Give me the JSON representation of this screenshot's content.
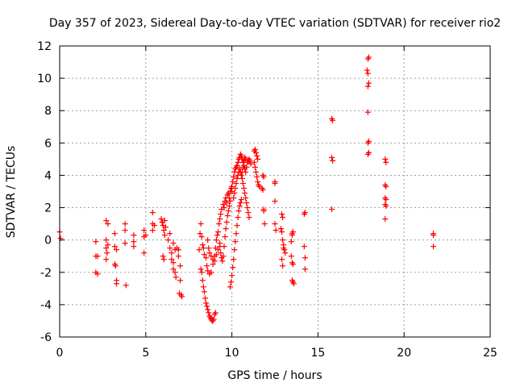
{
  "chart_data": {
    "type": "scatter",
    "title": "Day 357 of 2023, Sidereal Day-to-day VTEC variation (SDTVAR) for receiver rio2",
    "xlabel": "GPS time / hours",
    "ylabel": "SDTVAR / TECUs",
    "xlim": [
      0,
      25
    ],
    "ylim": [
      -6,
      12
    ],
    "xticks": [
      0,
      5,
      10,
      15,
      20,
      25
    ],
    "yticks": [
      -6,
      -4,
      -2,
      0,
      2,
      4,
      6,
      8,
      10,
      12
    ],
    "grid": true,
    "marker": "+",
    "marker_color": "#ff0000",
    "series": [
      {
        "name": "SDTVAR",
        "points": [
          [
            0.0,
            0.5
          ],
          [
            0.05,
            0.1
          ],
          [
            2.1,
            -0.1
          ],
          [
            2.1,
            -1.0
          ],
          [
            2.1,
            -2.0
          ],
          [
            2.2,
            -2.1
          ],
          [
            2.2,
            -1.0
          ],
          [
            2.7,
            1.2
          ],
          [
            2.7,
            0.0
          ],
          [
            2.7,
            -0.5
          ],
          [
            2.7,
            -1.2
          ],
          [
            2.8,
            1.0
          ],
          [
            2.8,
            -0.3
          ],
          [
            2.75,
            -0.8
          ],
          [
            3.2,
            0.4
          ],
          [
            3.2,
            -0.4
          ],
          [
            3.2,
            -1.5
          ],
          [
            3.3,
            -0.6
          ],
          [
            3.3,
            -2.5
          ],
          [
            3.3,
            -2.7
          ],
          [
            3.25,
            -1.6
          ],
          [
            3.8,
            1.0
          ],
          [
            3.8,
            0.6
          ],
          [
            3.8,
            -0.2
          ],
          [
            3.85,
            -2.8
          ],
          [
            4.3,
            0.3
          ],
          [
            4.3,
            -0.1
          ],
          [
            4.3,
            -0.4
          ],
          [
            4.9,
            0.6
          ],
          [
            4.9,
            0.2
          ],
          [
            4.9,
            -0.8
          ],
          [
            5.0,
            0.3
          ],
          [
            5.4,
            1.7
          ],
          [
            5.4,
            1.0
          ],
          [
            5.4,
            0.6
          ],
          [
            5.5,
            0.9
          ],
          [
            5.9,
            1.3
          ],
          [
            5.95,
            1.1
          ],
          [
            6.0,
            0.9
          ],
          [
            6.05,
            0.6
          ],
          [
            6.1,
            0.3
          ],
          [
            6.0,
            -1.0
          ],
          [
            6.05,
            -1.2
          ],
          [
            6.1,
            1.2
          ],
          [
            6.15,
            0.8
          ],
          [
            6.3,
            0.0
          ],
          [
            6.4,
            -0.5
          ],
          [
            6.5,
            -0.8
          ],
          [
            6.6,
            -1.4
          ],
          [
            6.7,
            -2.0
          ],
          [
            6.5,
            -1.2
          ],
          [
            6.6,
            -1.8
          ],
          [
            6.75,
            -2.3
          ],
          [
            6.4,
            0.4
          ],
          [
            6.6,
            -0.2
          ],
          [
            6.7,
            -0.6
          ],
          [
            6.8,
            -0.5
          ],
          [
            6.9,
            -1.0
          ],
          [
            7.0,
            -2.5
          ],
          [
            6.95,
            -3.3
          ],
          [
            7.05,
            -3.4
          ],
          [
            7.1,
            -3.5
          ],
          [
            6.9,
            -0.6
          ],
          [
            7.0,
            -1.6
          ],
          [
            8.1,
            -0.6
          ],
          [
            8.2,
            -1.8
          ],
          [
            8.25,
            -2.0
          ],
          [
            8.3,
            -2.5
          ],
          [
            8.35,
            -2.9
          ],
          [
            8.4,
            -3.2
          ],
          [
            8.45,
            -3.6
          ],
          [
            8.5,
            -3.9
          ],
          [
            8.55,
            -4.1
          ],
          [
            8.6,
            -4.3
          ],
          [
            8.65,
            -4.5
          ],
          [
            8.7,
            -4.7
          ],
          [
            8.75,
            -4.8
          ],
          [
            8.8,
            -4.9
          ],
          [
            8.85,
            -5.0
          ],
          [
            8.9,
            -5.0
          ],
          [
            8.95,
            -4.9
          ],
          [
            9.0,
            -4.6
          ],
          [
            9.05,
            -4.5
          ],
          [
            8.15,
            0.4
          ],
          [
            8.2,
            1.0
          ],
          [
            8.25,
            0.2
          ],
          [
            8.3,
            -0.3
          ],
          [
            8.35,
            -0.5
          ],
          [
            8.4,
            -0.9
          ],
          [
            8.5,
            -1.1
          ],
          [
            8.55,
            -1.6
          ],
          [
            8.6,
            -1.9
          ],
          [
            8.7,
            -2.1
          ],
          [
            8.8,
            -2.0
          ],
          [
            8.9,
            -1.5
          ],
          [
            9.0,
            -1.0
          ],
          [
            9.05,
            -0.5
          ],
          [
            9.1,
            0.0
          ],
          [
            9.15,
            0.3
          ],
          [
            8.6,
            0.0
          ],
          [
            8.65,
            -0.5
          ],
          [
            8.7,
            -0.8
          ],
          [
            8.8,
            -1.0
          ],
          [
            8.9,
            -1.2
          ],
          [
            9.0,
            -1.3
          ],
          [
            9.1,
            -0.9
          ],
          [
            9.2,
            -0.6
          ],
          [
            9.3,
            -0.4
          ],
          [
            9.2,
            0.5
          ],
          [
            9.25,
            1.0
          ],
          [
            9.3,
            1.3
          ],
          [
            9.35,
            1.6
          ],
          [
            9.4,
            1.9
          ],
          [
            9.5,
            2.2
          ],
          [
            9.55,
            2.0
          ],
          [
            9.6,
            2.4
          ],
          [
            9.65,
            2.6
          ],
          [
            9.7,
            2.3
          ],
          [
            9.75,
            2.8
          ],
          [
            9.8,
            2.9
          ],
          [
            9.85,
            2.6
          ],
          [
            9.9,
            3.0
          ],
          [
            9.95,
            3.2
          ],
          [
            10.0,
            3.0
          ],
          [
            9.3,
            -0.2
          ],
          [
            9.35,
            -0.8
          ],
          [
            9.4,
            -1.1
          ],
          [
            9.45,
            -1.3
          ],
          [
            9.5,
            -1.0
          ],
          [
            9.55,
            -0.4
          ],
          [
            9.6,
            0.2
          ],
          [
            9.65,
            0.7
          ],
          [
            9.7,
            1.1
          ],
          [
            9.75,
            1.5
          ],
          [
            9.8,
            1.8
          ],
          [
            9.85,
            2.1
          ],
          [
            9.9,
            2.4
          ],
          [
            9.9,
            -2.9
          ],
          [
            9.95,
            -2.6
          ],
          [
            10.0,
            -2.2
          ],
          [
            10.05,
            -1.7
          ],
          [
            10.1,
            -1.2
          ],
          [
            10.15,
            -0.6
          ],
          [
            10.2,
            -0.1
          ],
          [
            10.25,
            0.4
          ],
          [
            10.3,
            0.9
          ],
          [
            10.35,
            1.4
          ],
          [
            10.4,
            1.8
          ],
          [
            10.45,
            2.1
          ],
          [
            10.5,
            2.3
          ],
          [
            10.55,
            2.5
          ],
          [
            10.0,
            3.3
          ],
          [
            10.05,
            3.6
          ],
          [
            10.1,
            3.9
          ],
          [
            10.15,
            4.2
          ],
          [
            10.2,
            4.4
          ],
          [
            10.25,
            4.5
          ],
          [
            10.3,
            4.6
          ],
          [
            10.35,
            4.8
          ],
          [
            10.4,
            5.0
          ],
          [
            10.45,
            5.1
          ],
          [
            10.5,
            5.3
          ],
          [
            10.55,
            5.2
          ],
          [
            10.6,
            5.0
          ],
          [
            10.65,
            4.8
          ],
          [
            10.7,
            4.9
          ],
          [
            10.75,
            5.1
          ],
          [
            10.8,
            5.0
          ],
          [
            10.1,
            2.6
          ],
          [
            10.15,
            2.9
          ],
          [
            10.2,
            3.2
          ],
          [
            10.25,
            3.5
          ],
          [
            10.3,
            3.8
          ],
          [
            10.35,
            4.0
          ],
          [
            10.4,
            4.2
          ],
          [
            10.45,
            4.4
          ],
          [
            10.5,
            4.2
          ],
          [
            10.55,
            4.0
          ],
          [
            10.6,
            3.8
          ],
          [
            10.65,
            3.5
          ],
          [
            10.7,
            3.2
          ],
          [
            10.75,
            2.9
          ],
          [
            10.8,
            2.6
          ],
          [
            10.85,
            2.3
          ],
          [
            10.9,
            2.0
          ],
          [
            10.95,
            1.7
          ],
          [
            11.0,
            1.4
          ],
          [
            10.6,
            4.2
          ],
          [
            10.65,
            4.5
          ],
          [
            10.7,
            4.6
          ],
          [
            10.75,
            4.4
          ],
          [
            10.8,
            4.2
          ],
          [
            10.85,
            4.5
          ],
          [
            10.9,
            4.8
          ],
          [
            10.95,
            4.9
          ],
          [
            11.0,
            5.0
          ],
          [
            11.05,
            4.9
          ],
          [
            11.1,
            4.7
          ],
          [
            11.3,
            5.5
          ],
          [
            11.35,
            5.6
          ],
          [
            11.4,
            5.4
          ],
          [
            11.45,
            5.2
          ],
          [
            11.5,
            5.0
          ],
          [
            11.3,
            4.8
          ],
          [
            11.35,
            4.5
          ],
          [
            11.4,
            4.2
          ],
          [
            11.45,
            3.9
          ],
          [
            11.5,
            3.6
          ],
          [
            11.55,
            3.4
          ],
          [
            11.6,
            3.3
          ],
          [
            11.8,
            4.0
          ],
          [
            11.85,
            3.9
          ],
          [
            11.75,
            3.2
          ],
          [
            11.8,
            3.1
          ],
          [
            11.85,
            1.9
          ],
          [
            11.85,
            1.8
          ],
          [
            11.9,
            1.0
          ],
          [
            12.5,
            3.6
          ],
          [
            12.5,
            3.5
          ],
          [
            12.5,
            2.4
          ],
          [
            12.5,
            1.0
          ],
          [
            12.55,
            0.6
          ],
          [
            12.9,
            1.6
          ],
          [
            12.95,
            1.4
          ],
          [
            12.85,
            0.7
          ],
          [
            12.9,
            0.5
          ],
          [
            12.95,
            0.0
          ],
          [
            13.0,
            -0.3
          ],
          [
            13.05,
            -0.6
          ],
          [
            13.1,
            -0.8
          ],
          [
            13.0,
            -0.5
          ],
          [
            12.95,
            -1.6
          ],
          [
            12.9,
            -1.2
          ],
          [
            13.5,
            0.4
          ],
          [
            13.5,
            0.3
          ],
          [
            13.45,
            -0.1
          ],
          [
            13.45,
            -1.0
          ],
          [
            13.5,
            -1.4
          ],
          [
            13.55,
            -1.5
          ],
          [
            13.5,
            -2.5
          ],
          [
            13.55,
            -2.6
          ],
          [
            13.6,
            -2.7
          ],
          [
            13.55,
            0.5
          ],
          [
            14.2,
            1.6
          ],
          [
            14.25,
            1.7
          ],
          [
            14.2,
            -0.4
          ],
          [
            14.25,
            -1.1
          ],
          [
            14.25,
            -1.8
          ],
          [
            15.8,
            7.5
          ],
          [
            15.85,
            7.4
          ],
          [
            15.8,
            5.1
          ],
          [
            15.85,
            4.9
          ],
          [
            15.8,
            1.9
          ],
          [
            17.9,
            11.2
          ],
          [
            17.95,
            11.3
          ],
          [
            17.85,
            10.5
          ],
          [
            17.9,
            10.3
          ],
          [
            17.95,
            9.7
          ],
          [
            17.9,
            9.5
          ],
          [
            17.9,
            7.9
          ],
          [
            17.95,
            6.1
          ],
          [
            17.9,
            6.0
          ],
          [
            17.9,
            5.3
          ],
          [
            17.95,
            5.4
          ],
          [
            18.9,
            5.0
          ],
          [
            18.95,
            4.8
          ],
          [
            18.9,
            3.4
          ],
          [
            18.95,
            3.3
          ],
          [
            18.9,
            2.6
          ],
          [
            18.95,
            2.5
          ],
          [
            18.9,
            2.2
          ],
          [
            18.95,
            2.1
          ],
          [
            18.9,
            1.3
          ],
          [
            21.7,
            0.4
          ],
          [
            21.7,
            0.3
          ],
          [
            21.7,
            -0.4
          ]
        ]
      }
    ]
  }
}
